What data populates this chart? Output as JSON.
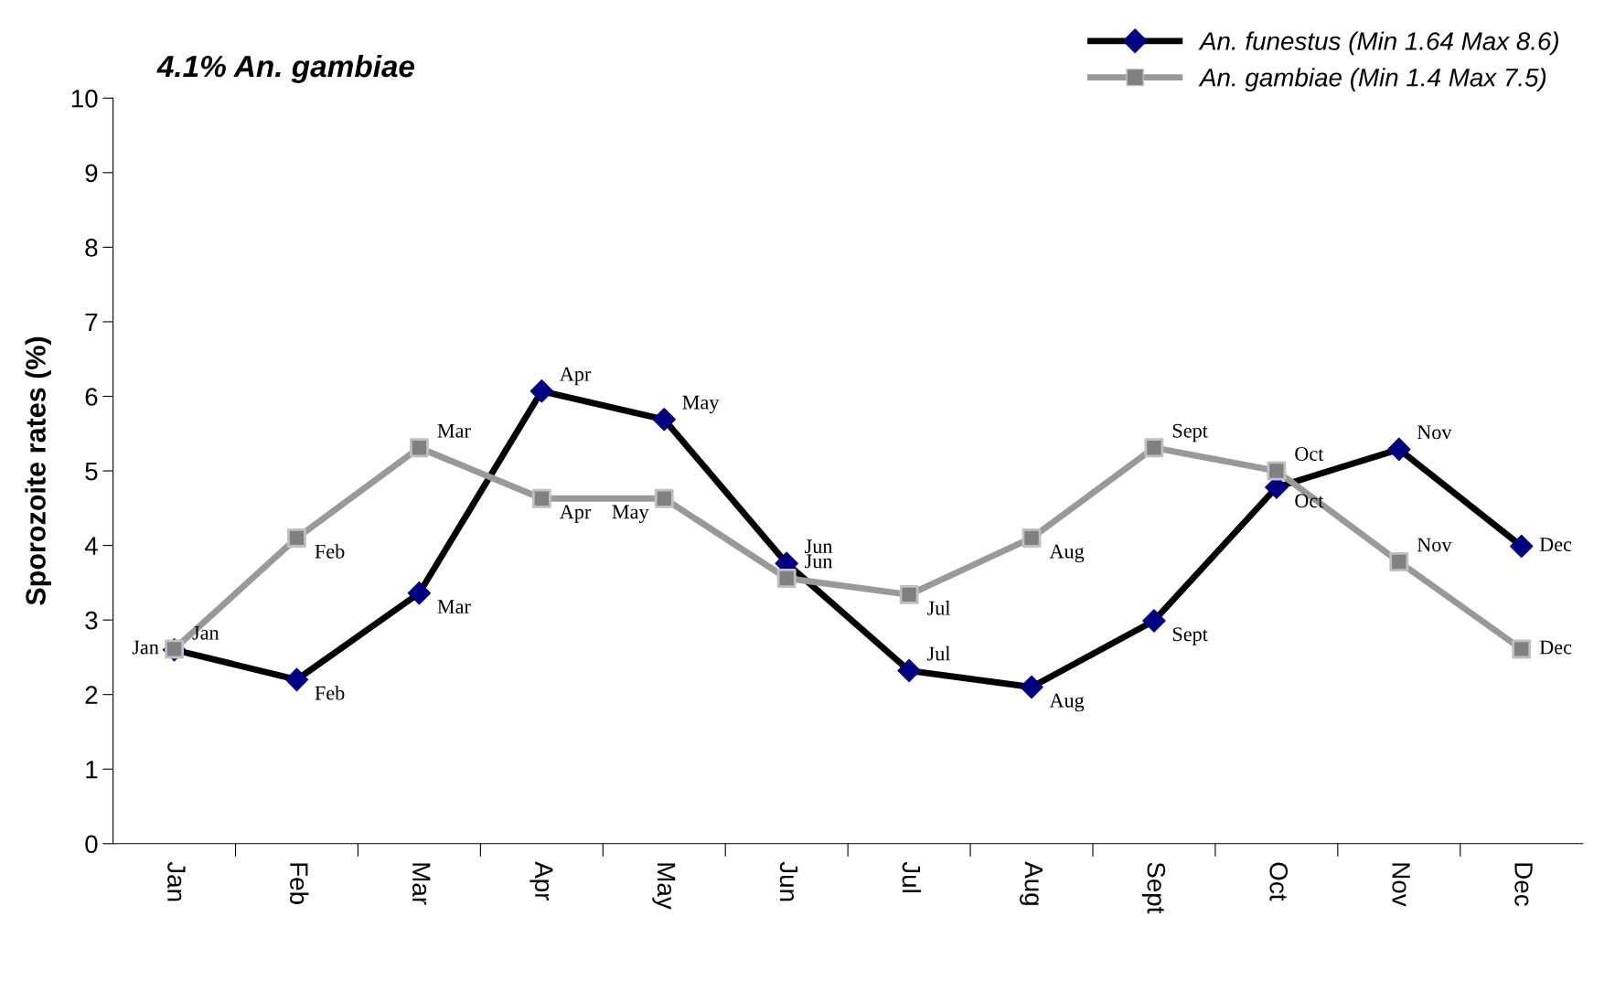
{
  "chart_data": {
    "type": "line",
    "title": "4.1% An. gambiae",
    "ylabel": "Sporozoite rates (%)",
    "categories": [
      "Jan",
      "Feb",
      "Mar",
      "Apr",
      "May",
      "Jun",
      "Jul",
      "Aug",
      "Sept",
      "Oct",
      "Nov",
      "Dec"
    ],
    "series": [
      {
        "name": "An. funestus (Min 1.64 Max 8.6)",
        "color": "#000000",
        "colors": [
          "#000080",
          "#000080",
          "#000080",
          "#000080",
          "#000080",
          "#000080",
          "#000080",
          "#000080",
          "#000080",
          "#000080",
          "#000080",
          "#000080"
        ],
        "marker": "diamond",
        "values": [
          2.6,
          2.2,
          3.36,
          6.07,
          5.69,
          3.76,
          2.32,
          2.1,
          2.99,
          4.78,
          5.29,
          3.99
        ],
        "value_labels": [
          "Jan",
          "Feb",
          "Mar",
          "Apr",
          "May",
          "Jun",
          "Jul",
          "Aug",
          "Sept",
          "Oct",
          "Nov",
          "Dec"
        ]
      },
      {
        "name": "An. gambiae (Min 1.4 Max 7.5)",
        "color": "#999999",
        "colors": [
          "#808080",
          "#808080",
          "#808080",
          "#808080",
          "#808080",
          "#808080",
          "#808080",
          "#808080",
          "#808080",
          "#808080",
          "#808080",
          "#808080"
        ],
        "marker": "square",
        "values": [
          2.61,
          4.1,
          5.31,
          4.63,
          4.63,
          3.56,
          3.34,
          4.1,
          5.31,
          5.0,
          3.78,
          2.61
        ],
        "value_labels": [
          "Jan",
          "Feb",
          "Mar",
          "Apr",
          "May",
          "Jun",
          "Jul",
          "Aug",
          "Sept",
          "Oct",
          "Nov",
          "Dec"
        ]
      }
    ],
    "ylim": [
      0,
      10
    ],
    "yticks": [
      0,
      1,
      2,
      3,
      4,
      5,
      6,
      7,
      8,
      9,
      10
    ],
    "grid": false,
    "legend": "top right"
  }
}
